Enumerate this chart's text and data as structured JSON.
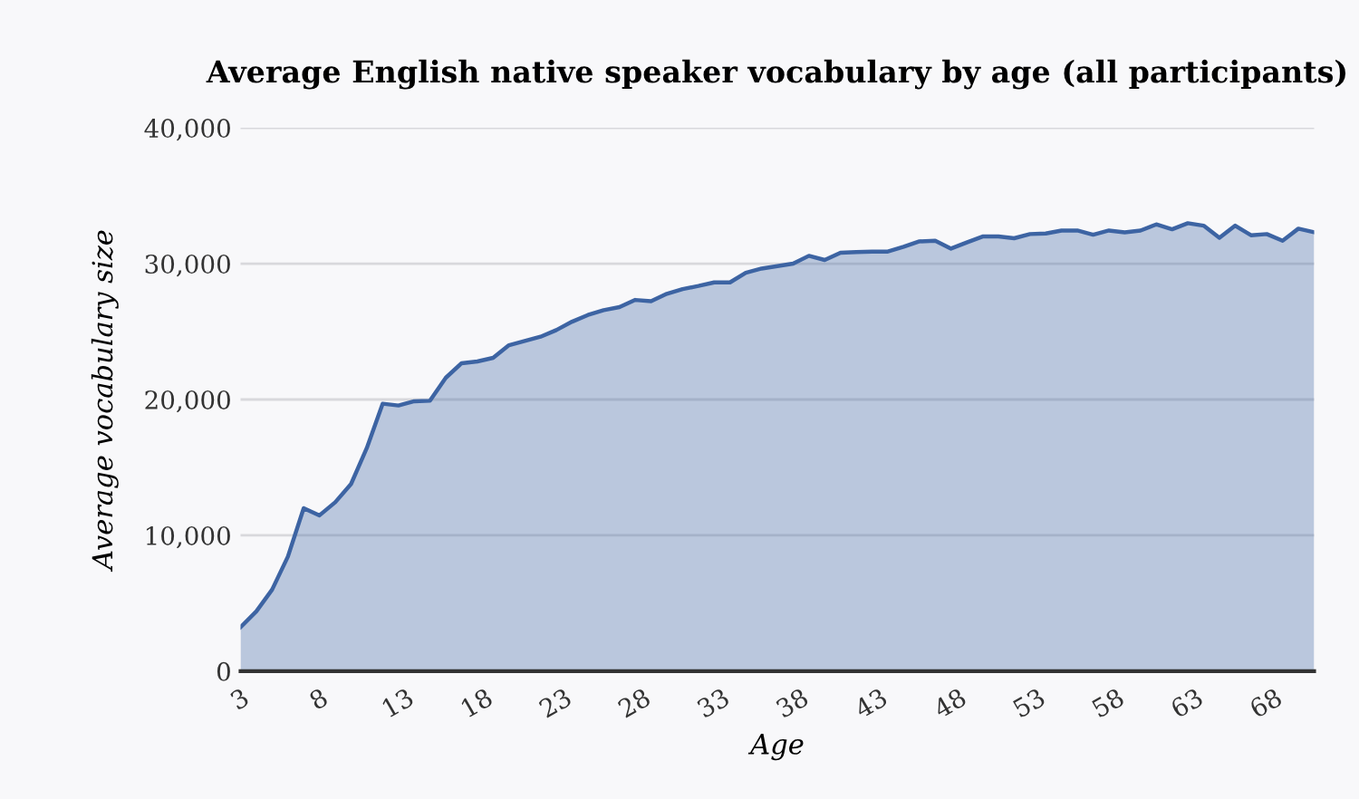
{
  "chart_data": {
    "type": "area",
    "title": "Average English native speaker vocabulary by age (all participants)",
    "xlabel": "Age",
    "ylabel": "Average vocabulary size",
    "x": [
      3,
      4,
      5,
      6,
      7,
      8,
      9,
      10,
      11,
      12,
      13,
      14,
      15,
      16,
      17,
      18,
      19,
      20,
      21,
      22,
      23,
      24,
      25,
      26,
      27,
      28,
      29,
      30,
      31,
      32,
      33,
      34,
      35,
      36,
      37,
      38,
      39,
      40,
      41,
      42,
      43,
      44,
      45,
      46,
      47,
      48,
      49,
      50,
      51,
      52,
      53,
      54,
      55,
      56,
      57,
      58,
      59,
      60,
      61,
      62,
      63,
      64,
      65,
      66,
      67,
      68,
      69,
      70,
      71
    ],
    "series": [
      {
        "color": "#3d64a3",
        "values": [
          3240,
          4400,
          6000,
          8440,
          12000,
          11470,
          12440,
          13780,
          16440,
          19690,
          19560,
          19870,
          19910,
          21600,
          22670,
          22800,
          23070,
          24000,
          24310,
          24620,
          25110,
          25730,
          26220,
          26580,
          26800,
          27330,
          27240,
          27780,
          28130,
          28360,
          28620,
          28620,
          29330,
          29640,
          29820,
          30000,
          30580,
          30270,
          30800,
          30850,
          30890,
          30890,
          31240,
          31640,
          31690,
          31110,
          31560,
          32000,
          32000,
          31870,
          32180,
          32220,
          32440,
          32440,
          32130,
          32440,
          32310,
          32440,
          32890,
          32530,
          32980,
          32800,
          31910,
          32800,
          32090,
          32180,
          31690,
          32580,
          32310
        ]
      }
    ],
    "xlim": [
      3,
      71
    ],
    "xticks": [
      3,
      8,
      13,
      18,
      23,
      28,
      33,
      38,
      43,
      48,
      53,
      58,
      63,
      68
    ],
    "ylim": [
      0,
      40000
    ],
    "yticks": [
      {
        "value": 0,
        "label": "0"
      },
      {
        "value": 10000,
        "label": "10,000"
      },
      {
        "value": 20000,
        "label": "20,000"
      },
      {
        "value": 30000,
        "label": "30,000"
      },
      {
        "value": 40000,
        "label": "40,000"
      }
    ],
    "grid": "y",
    "legend": false
  }
}
